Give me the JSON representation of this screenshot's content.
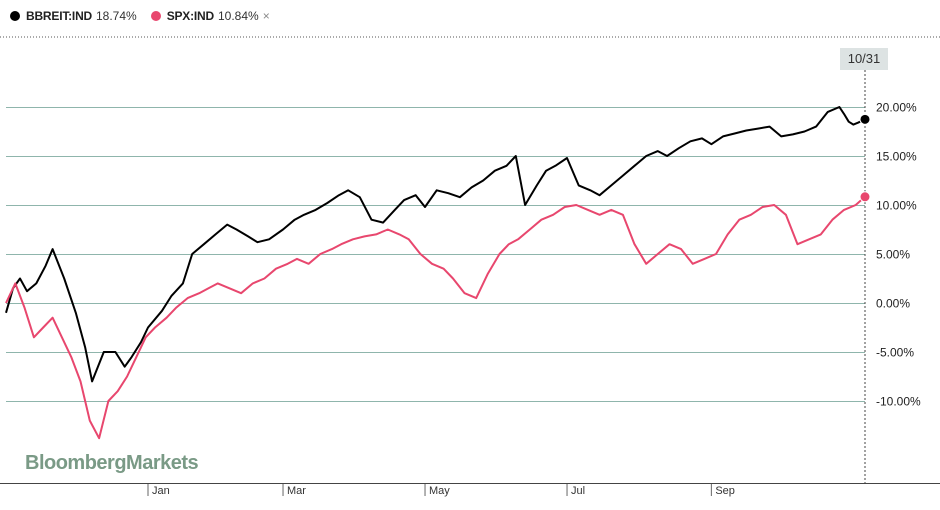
{
  "legend": {
    "items": [
      {
        "name": "BBREIT:IND",
        "value": "18.74%",
        "color": "#000000"
      },
      {
        "name": "SPX:IND",
        "value": "10.84%",
        "color": "#e8476e",
        "close": "×"
      }
    ]
  },
  "watermark": "BloombergMarkets",
  "date_badge": "10/31",
  "chart_data": {
    "type": "line",
    "title": "",
    "xlabel": "",
    "ylabel": "",
    "ylim": [
      -17,
      24
    ],
    "y_ticks": [
      20,
      15,
      10,
      5,
      0,
      -5,
      -10
    ],
    "y_tick_labels": [
      "20.00%",
      "15.00%",
      "10.00%",
      "5.00%",
      "0.00%",
      "-5.00%",
      "-10.00%"
    ],
    "x_ticks": [
      {
        "label": "Jan",
        "x": 41
      },
      {
        "label": "Mar",
        "x": 99
      },
      {
        "label": "May",
        "x": 160
      },
      {
        "label": "Jul",
        "x": 221
      },
      {
        "label": "Sep",
        "x": 283
      }
    ],
    "x_range": [
      -20,
      349
    ],
    "grid": true,
    "series": [
      {
        "name": "BBREIT:IND",
        "color": "#000000",
        "x": [
          -20,
          -17,
          -14,
          -11,
          -7,
          -3,
          0,
          5,
          10,
          14,
          17,
          22,
          27,
          31,
          34,
          38,
          41,
          47,
          51,
          56,
          60,
          65,
          70,
          75,
          79,
          84,
          88,
          93,
          99,
          104,
          108,
          113,
          118,
          123,
          127,
          132,
          137,
          142,
          147,
          151,
          156,
          160,
          165,
          170,
          175,
          180,
          185,
          190,
          195,
          199,
          203,
          208,
          212,
          216,
          221,
          226,
          231,
          235,
          240,
          245,
          250,
          255,
          260,
          264,
          269,
          274,
          279,
          283,
          288,
          293,
          298,
          303,
          308,
          313,
          318,
          323,
          328,
          333,
          338,
          340,
          342,
          344,
          346,
          349
        ],
        "values": [
          -1.0,
          1.5,
          2.5,
          1.2,
          2.0,
          3.8,
          5.5,
          2.5,
          -1.0,
          -4.5,
          -8.0,
          -5.0,
          -5.0,
          -6.5,
          -5.5,
          -4.0,
          -2.5,
          -0.8,
          0.7,
          2.0,
          5.0,
          6.0,
          7.0,
          8.0,
          7.5,
          6.8,
          6.2,
          6.5,
          7.5,
          8.5,
          9.0,
          9.5,
          10.2,
          11.0,
          11.5,
          10.8,
          8.5,
          8.2,
          9.5,
          10.5,
          11.0,
          9.8,
          11.5,
          11.2,
          10.8,
          11.8,
          12.5,
          13.5,
          14.0,
          15.0,
          10.0,
          12.0,
          13.5,
          14.0,
          14.8,
          12.0,
          11.5,
          11.0,
          12.0,
          13.0,
          14.0,
          15.0,
          15.5,
          15.0,
          15.8,
          16.5,
          16.8,
          16.2,
          17.0,
          17.3,
          17.6,
          17.8,
          18.0,
          17.0,
          17.2,
          17.5,
          18.0,
          19.5,
          20.0,
          19.3,
          18.5,
          18.2,
          18.4,
          18.74
        ]
      },
      {
        "name": "SPX:IND",
        "color": "#e8476e",
        "x": [
          -20,
          -16,
          -12,
          -8,
          -4,
          0,
          4,
          8,
          12,
          16,
          20,
          24,
          28,
          32,
          36,
          40,
          44,
          49,
          53,
          58,
          63,
          67,
          71,
          76,
          81,
          86,
          91,
          96,
          101,
          105,
          110,
          115,
          120,
          124,
          129,
          134,
          139,
          144,
          149,
          153,
          158,
          163,
          168,
          172,
          177,
          182,
          187,
          192,
          196,
          200,
          205,
          210,
          215,
          220,
          225,
          230,
          235,
          240,
          245,
          250,
          255,
          260,
          265,
          270,
          275,
          280,
          285,
          290,
          295,
          300,
          305,
          310,
          315,
          320,
          325,
          330,
          335,
          340,
          345,
          349
        ],
        "values": [
          0.0,
          2.0,
          -0.5,
          -3.5,
          -2.5,
          -1.5,
          -3.5,
          -5.5,
          -8.0,
          -12.0,
          -13.8,
          -10.0,
          -9.0,
          -7.5,
          -5.5,
          -3.5,
          -2.5,
          -1.5,
          -0.5,
          0.5,
          1.0,
          1.5,
          2.0,
          1.5,
          1.0,
          2.0,
          2.5,
          3.5,
          4.0,
          4.5,
          4.0,
          5.0,
          5.5,
          6.0,
          6.5,
          6.8,
          7.0,
          7.5,
          7.0,
          6.5,
          5.0,
          4.0,
          3.5,
          2.5,
          1.0,
          0.5,
          3.0,
          5.0,
          6.0,
          6.5,
          7.5,
          8.5,
          9.0,
          9.8,
          10.0,
          9.5,
          9.0,
          9.5,
          9.0,
          6.0,
          4.0,
          5.0,
          6.0,
          5.5,
          4.0,
          4.5,
          5.0,
          7.0,
          8.5,
          9.0,
          9.8,
          10.0,
          9.0,
          6.0,
          6.5,
          7.0,
          8.5,
          9.5,
          10.0,
          10.84
        ]
      }
    ]
  }
}
